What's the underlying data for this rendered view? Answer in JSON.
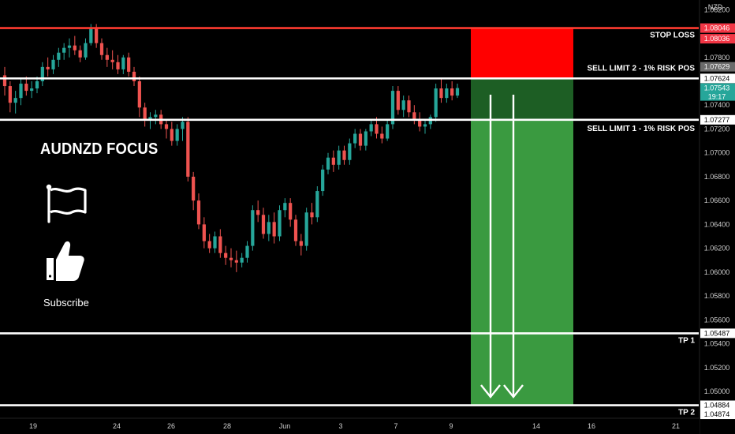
{
  "chart_data": {
    "type": "candlestick",
    "symbol": "AUDNZD",
    "currency": "NZD",
    "x_ticks": [
      "19",
      "24",
      "26",
      "28",
      "Jun",
      "3",
      "7",
      "9",
      "14",
      "16",
      "21"
    ],
    "y_ticks": [
      "1.08200",
      "1.07800",
      "1.07400",
      "1.07200",
      "1.07000",
      "1.06800",
      "1.06600",
      "1.06400",
      "1.06200",
      "1.06000",
      "1.05800",
      "1.05600",
      "1.05400",
      "1.05200",
      "1.05000"
    ],
    "ylim": [
      1.0485,
      1.0825
    ],
    "candles": [
      {
        "o": 1.0765,
        "h": 1.0772,
        "l": 1.0748,
        "c": 1.0756
      },
      {
        "o": 1.0756,
        "h": 1.076,
        "l": 1.0734,
        "c": 1.0742
      },
      {
        "o": 1.0742,
        "h": 1.0752,
        "l": 1.0733,
        "c": 1.0746
      },
      {
        "o": 1.0746,
        "h": 1.0762,
        "l": 1.074,
        "c": 1.0758
      },
      {
        "o": 1.0758,
        "h": 1.0764,
        "l": 1.0748,
        "c": 1.0752
      },
      {
        "o": 1.0752,
        "h": 1.076,
        "l": 1.0746,
        "c": 1.0754
      },
      {
        "o": 1.0754,
        "h": 1.0764,
        "l": 1.075,
        "c": 1.076
      },
      {
        "o": 1.076,
        "h": 1.0776,
        "l": 1.0756,
        "c": 1.0772
      },
      {
        "o": 1.0772,
        "h": 1.078,
        "l": 1.0764,
        "c": 1.077
      },
      {
        "o": 1.077,
        "h": 1.0782,
        "l": 1.0766,
        "c": 1.0778
      },
      {
        "o": 1.0778,
        "h": 1.0788,
        "l": 1.0772,
        "c": 1.0784
      },
      {
        "o": 1.0784,
        "h": 1.0792,
        "l": 1.0778,
        "c": 1.0788
      },
      {
        "o": 1.0788,
        "h": 1.0796,
        "l": 1.078,
        "c": 1.079
      },
      {
        "o": 1.079,
        "h": 1.0798,
        "l": 1.0782,
        "c": 1.0786
      },
      {
        "o": 1.0786,
        "h": 1.079,
        "l": 1.0776,
        "c": 1.078
      },
      {
        "o": 1.078,
        "h": 1.0796,
        "l": 1.0778,
        "c": 1.0792
      },
      {
        "o": 1.0792,
        "h": 1.0808,
        "l": 1.079,
        "c": 1.0804
      },
      {
        "o": 1.0804,
        "h": 1.0808,
        "l": 1.0788,
        "c": 1.0792
      },
      {
        "o": 1.0792,
        "h": 1.0796,
        "l": 1.0778,
        "c": 1.0782
      },
      {
        "o": 1.0782,
        "h": 1.0788,
        "l": 1.0772,
        "c": 1.0778
      },
      {
        "o": 1.0778,
        "h": 1.0786,
        "l": 1.077,
        "c": 1.0776
      },
      {
        "o": 1.0776,
        "h": 1.0782,
        "l": 1.0766,
        "c": 1.077
      },
      {
        "o": 1.077,
        "h": 1.0782,
        "l": 1.0766,
        "c": 1.078
      },
      {
        "o": 1.078,
        "h": 1.0784,
        "l": 1.0764,
        "c": 1.0768
      },
      {
        "o": 1.0768,
        "h": 1.0772,
        "l": 1.0756,
        "c": 1.076
      },
      {
        "o": 1.076,
        "h": 1.0764,
        "l": 1.073,
        "c": 1.0738
      },
      {
        "o": 1.0738,
        "h": 1.0742,
        "l": 1.0722,
        "c": 1.0728
      },
      {
        "o": 1.0728,
        "h": 1.0734,
        "l": 1.072,
        "c": 1.073
      },
      {
        "o": 1.073,
        "h": 1.0736,
        "l": 1.0724,
        "c": 1.0732
      },
      {
        "o": 1.0732,
        "h": 1.0736,
        "l": 1.072,
        "c": 1.0724
      },
      {
        "o": 1.0724,
        "h": 1.0728,
        "l": 1.0712,
        "c": 1.072
      },
      {
        "o": 1.072,
        "h": 1.0726,
        "l": 1.0706,
        "c": 1.071
      },
      {
        "o": 1.071,
        "h": 1.0724,
        "l": 1.0706,
        "c": 1.072
      },
      {
        "o": 1.072,
        "h": 1.073,
        "l": 1.071,
        "c": 1.0726
      },
      {
        "o": 1.0726,
        "h": 1.073,
        "l": 1.0676,
        "c": 1.068
      },
      {
        "o": 1.068,
        "h": 1.0684,
        "l": 1.0652,
        "c": 1.066
      },
      {
        "o": 1.066,
        "h": 1.0666,
        "l": 1.0636,
        "c": 1.064
      },
      {
        "o": 1.064,
        "h": 1.0646,
        "l": 1.062,
        "c": 1.0626
      },
      {
        "o": 1.0626,
        "h": 1.0632,
        "l": 1.0616,
        "c": 1.062
      },
      {
        "o": 1.062,
        "h": 1.0634,
        "l": 1.0616,
        "c": 1.063
      },
      {
        "o": 1.063,
        "h": 1.0636,
        "l": 1.0612,
        "c": 1.0616
      },
      {
        "o": 1.0616,
        "h": 1.0622,
        "l": 1.0606,
        "c": 1.0612
      },
      {
        "o": 1.0612,
        "h": 1.062,
        "l": 1.0604,
        "c": 1.061
      },
      {
        "o": 1.061,
        "h": 1.0618,
        "l": 1.06,
        "c": 1.0608
      },
      {
        "o": 1.0608,
        "h": 1.0616,
        "l": 1.0604,
        "c": 1.0612
      },
      {
        "o": 1.0612,
        "h": 1.0626,
        "l": 1.0608,
        "c": 1.0622
      },
      {
        "o": 1.0622,
        "h": 1.0656,
        "l": 1.0618,
        "c": 1.0652
      },
      {
        "o": 1.0652,
        "h": 1.066,
        "l": 1.0642,
        "c": 1.0648
      },
      {
        "o": 1.0648,
        "h": 1.0654,
        "l": 1.0628,
        "c": 1.0632
      },
      {
        "o": 1.0632,
        "h": 1.0648,
        "l": 1.0626,
        "c": 1.0642
      },
      {
        "o": 1.0642,
        "h": 1.065,
        "l": 1.0624,
        "c": 1.063
      },
      {
        "o": 1.063,
        "h": 1.0656,
        "l": 1.0626,
        "c": 1.0652
      },
      {
        "o": 1.0652,
        "h": 1.0662,
        "l": 1.0646,
        "c": 1.0658
      },
      {
        "o": 1.0658,
        "h": 1.0662,
        "l": 1.0638,
        "c": 1.0644
      },
      {
        "o": 1.0644,
        "h": 1.0648,
        "l": 1.0622,
        "c": 1.0626
      },
      {
        "o": 1.0626,
        "h": 1.0632,
        "l": 1.0614,
        "c": 1.0622
      },
      {
        "o": 1.0622,
        "h": 1.0654,
        "l": 1.0618,
        "c": 1.065
      },
      {
        "o": 1.065,
        "h": 1.0658,
        "l": 1.064,
        "c": 1.0646
      },
      {
        "o": 1.0646,
        "h": 1.0672,
        "l": 1.0642,
        "c": 1.0668
      },
      {
        "o": 1.0668,
        "h": 1.069,
        "l": 1.0664,
        "c": 1.0686
      },
      {
        "o": 1.0686,
        "h": 1.07,
        "l": 1.0682,
        "c": 1.0696
      },
      {
        "o": 1.0696,
        "h": 1.0702,
        "l": 1.0684,
        "c": 1.069
      },
      {
        "o": 1.069,
        "h": 1.0706,
        "l": 1.0686,
        "c": 1.0702
      },
      {
        "o": 1.0702,
        "h": 1.0706,
        "l": 1.069,
        "c": 1.0694
      },
      {
        "o": 1.0694,
        "h": 1.0712,
        "l": 1.069,
        "c": 1.0708
      },
      {
        "o": 1.0708,
        "h": 1.072,
        "l": 1.0704,
        "c": 1.0716
      },
      {
        "o": 1.0716,
        "h": 1.072,
        "l": 1.0702,
        "c": 1.0706
      },
      {
        "o": 1.0706,
        "h": 1.072,
        "l": 1.0702,
        "c": 1.0718
      },
      {
        "o": 1.0718,
        "h": 1.0728,
        "l": 1.0714,
        "c": 1.0724
      },
      {
        "o": 1.0724,
        "h": 1.073,
        "l": 1.0712,
        "c": 1.0716
      },
      {
        "o": 1.0716,
        "h": 1.0722,
        "l": 1.0708,
        "c": 1.0712
      },
      {
        "o": 1.0712,
        "h": 1.0728,
        "l": 1.071,
        "c": 1.0724
      },
      {
        "o": 1.0724,
        "h": 1.0756,
        "l": 1.072,
        "c": 1.0752
      },
      {
        "o": 1.0752,
        "h": 1.0756,
        "l": 1.0732,
        "c": 1.0736
      },
      {
        "o": 1.0736,
        "h": 1.0748,
        "l": 1.073,
        "c": 1.0744
      },
      {
        "o": 1.0744,
        "h": 1.0748,
        "l": 1.073,
        "c": 1.0734
      },
      {
        "o": 1.0734,
        "h": 1.074,
        "l": 1.0724,
        "c": 1.0728
      },
      {
        "o": 1.0728,
        "h": 1.0734,
        "l": 1.0718,
        "c": 1.0722
      },
      {
        "o": 1.0722,
        "h": 1.0728,
        "l": 1.0716,
        "c": 1.0724
      },
      {
        "o": 1.0724,
        "h": 1.0732,
        "l": 1.072,
        "c": 1.073
      },
      {
        "o": 1.073,
        "h": 1.0758,
        "l": 1.0726,
        "c": 1.0754
      },
      {
        "o": 1.0754,
        "h": 1.0762,
        "l": 1.0742,
        "c": 1.0746
      },
      {
        "o": 1.0746,
        "h": 1.0758,
        "l": 1.0742,
        "c": 1.0754
      },
      {
        "o": 1.0754,
        "h": 1.076,
        "l": 1.0744,
        "c": 1.0748
      },
      {
        "o": 1.0748,
        "h": 1.0758,
        "l": 1.0746,
        "c": 1.07543
      }
    ],
    "levels": [
      {
        "key": "stop_loss",
        "name": "STOP LOSS",
        "price": 1.08046,
        "price_label": "1.08046",
        "color": "#ff3b30"
      },
      {
        "key": "sell2",
        "name": "SELL LIMIT 2 - 1% RISK POS",
        "price": 1.07624,
        "price_label": "1.07624",
        "color": "#ffffff"
      },
      {
        "key": "sell1",
        "name": "SELL LIMIT 1 - 1% RISK POS",
        "price": 1.07277,
        "price_label": "1.07277",
        "color": "#ffffff"
      },
      {
        "key": "tp1",
        "name": "TP 1",
        "price": 1.05487,
        "price_label": "1.05487",
        "color": "#ffffff"
      },
      {
        "key": "tp2",
        "name": "TP 2",
        "price": 1.04884,
        "price_label": "1.04884",
        "color": "#ffffff"
      }
    ],
    "extra_price_tags": [
      {
        "price": 1.08036,
        "label": "1.08036",
        "bg": "#f23645",
        "fg": "#ffffff"
      },
      {
        "price": 1.07629,
        "label": "1.07629",
        "bg": "#6b6b6b",
        "fg": "#ffffff"
      },
      {
        "price": 1.07543,
        "label": "1.07543",
        "sub": "19:17",
        "bg": "#26a69a",
        "fg": "#ffffff"
      },
      {
        "price": 1.04874,
        "label": "1.04874",
        "bg": "#ffffff",
        "fg": "#000000"
      }
    ],
    "trade_zone": {
      "stop_price": 1.08046,
      "entry_price": 1.07624,
      "entry1_price": 1.07277,
      "target_price": 1.04884,
      "risk_color": "#ff0000",
      "reward_dark_color": "#1d5e24",
      "reward_color": "#3a9a40"
    },
    "up_color": "#26a69a",
    "down_color": "#ef5350"
  },
  "overlay": {
    "title": "AUDNZD FOCUS",
    "subscribe": "Subscribe",
    "flag_icon": "flag-icon",
    "thumb_icon": "thumbs-up-icon"
  }
}
